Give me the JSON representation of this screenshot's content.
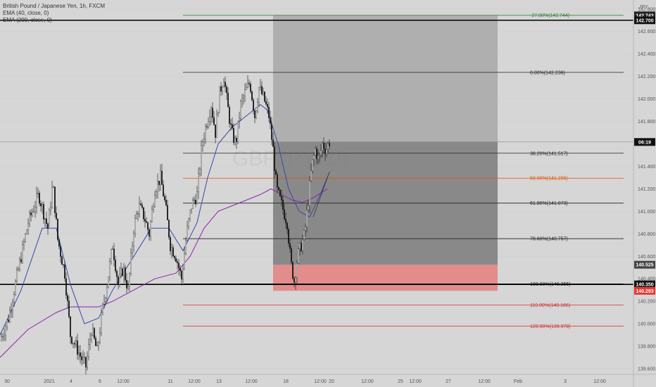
{
  "legend": {
    "title": "British Pound / Japanese Yen, 1h, FXCM",
    "ema40": "EMA (40, close, 0)",
    "ema200": "EMA (200, close, 0)"
  },
  "watermark": "GBPJPY, 1h",
  "chart_data": {
    "type": "candlestick",
    "currency": "JPY",
    "ylim": [
      139.55,
      142.88
    ],
    "y_ticks": [
      "142.800",
      "142.600",
      "142.400",
      "142.200",
      "142.000",
      "141.800",
      "141.600",
      "141.400",
      "141.200",
      "141.000",
      "140.800",
      "140.600",
      "140.400",
      "140.200",
      "140.000",
      "139.800",
      "139.600"
    ],
    "x_ticks": [
      "30",
      "2021",
      "4",
      "6",
      "12:00",
      "11",
      "12:00",
      "13",
      "12:00",
      "18",
      "12:00",
      "20",
      "12:00",
      "25",
      "12:00",
      "27",
      "12:00",
      "Feb",
      "3",
      "12:00"
    ],
    "horizontal_lines": [
      142.7,
      140.35
    ],
    "fibonacci": [
      {
        "label": "-27.00%(142.744)",
        "price": 142.744,
        "color": "#2e7d32"
      },
      {
        "label": "0.00%(142.236)",
        "price": 142.236,
        "color": "#222222"
      },
      {
        "label": "38.20%(141.517)",
        "price": 141.517,
        "color": "#222222"
      },
      {
        "label": "50.00%(141.295)",
        "price": 141.295,
        "color": "#e65100"
      },
      {
        "label": "61.80%(141.073)",
        "price": 141.073,
        "color": "#222222"
      },
      {
        "label": "78.60%(140.757)",
        "price": 140.757,
        "color": "#222222"
      },
      {
        "label": "100.00%(140.355)",
        "price": 140.355,
        "color": "#222222"
      },
      {
        "label": "110.00%(140.166)",
        "price": 140.166,
        "color": "#d32f2f"
      },
      {
        "label": "120.00%(139.978)",
        "price": 139.978,
        "color": "#d32f2f"
      }
    ],
    "position": {
      "target": 142.743,
      "entry": 140.525,
      "stop": 140.293
    },
    "price_tags": [
      {
        "label": "142.743",
        "price": 142.743,
        "bg": "#222222",
        "fg": "#ffffff"
      },
      {
        "label": "142.700",
        "price": 142.7,
        "bg": "#111111",
        "fg": "#ffffff"
      },
      {
        "label": "06:19",
        "price": 141.617,
        "bg": "#111111",
        "fg": "#ffffff"
      },
      {
        "label": "140.525",
        "price": 140.525,
        "bg": "#444444",
        "fg": "#ffffff"
      },
      {
        "label": "140.350",
        "price": 140.35,
        "bg": "#111111",
        "fg": "#ffffff"
      },
      {
        "label": "140.293",
        "price": 140.293,
        "bg": "#e53935",
        "fg": "#ffffff"
      }
    ],
    "price_path": [
      [
        0,
        139.85
      ],
      [
        12,
        140.05
      ],
      [
        25,
        140.45
      ],
      [
        40,
        140.9
      ],
      [
        55,
        141.15
      ],
      [
        68,
        140.85
      ],
      [
        75,
        141.25
      ],
      [
        82,
        140.75
      ],
      [
        92,
        140.45
      ],
      [
        100,
        139.9
      ],
      [
        108,
        139.8
      ],
      [
        115,
        139.7
      ],
      [
        122,
        139.62
      ],
      [
        130,
        139.95
      ],
      [
        138,
        139.75
      ],
      [
        145,
        140.1
      ],
      [
        152,
        140.35
      ],
      [
        160,
        140.7
      ],
      [
        168,
        140.35
      ],
      [
        175,
        140.5
      ],
      [
        182,
        140.3
      ],
      [
        190,
        140.85
      ],
      [
        197,
        141.05
      ],
      [
        205,
        140.95
      ],
      [
        212,
        140.8
      ],
      [
        220,
        141.2
      ],
      [
        228,
        141.3
      ],
      [
        235,
        141.05
      ],
      [
        242,
        140.7
      ],
      [
        250,
        140.6
      ],
      [
        258,
        140.4
      ],
      [
        265,
        140.8
      ],
      [
        272,
        141.05
      ],
      [
        280,
        141.15
      ],
      [
        287,
        141.6
      ],
      [
        294,
        141.8
      ],
      [
        300,
        141.95
      ],
      [
        306,
        141.7
      ],
      [
        312,
        142.05
      ],
      [
        318,
        142.2
      ],
      [
        323,
        141.95
      ],
      [
        329,
        141.7
      ],
      [
        335,
        141.6
      ],
      [
        342,
        141.95
      ],
      [
        348,
        142.05
      ],
      [
        355,
        142.15
      ],
      [
        362,
        141.85
      ],
      [
        368,
        142.1
      ],
      [
        375,
        142.0
      ],
      [
        382,
        141.85
      ],
      [
        388,
        141.55
      ],
      [
        393,
        141.2
      ],
      [
        398,
        141.1
      ],
      [
        403,
        141.0
      ],
      [
        408,
        140.9
      ],
      [
        413,
        140.55
      ],
      [
        418,
        140.38
      ],
      [
        423,
        140.6
      ],
      [
        428,
        140.7
      ],
      [
        433,
        140.8
      ],
      [
        438,
        141.1
      ],
      [
        443,
        141.4
      ],
      [
        448,
        141.55
      ],
      [
        453,
        141.45
      ],
      [
        458,
        141.6
      ],
      [
        463,
        141.55
      ],
      [
        468,
        141.62
      ]
    ],
    "ema40": [
      [
        0,
        139.9
      ],
      [
        30,
        140.3
      ],
      [
        60,
        140.85
      ],
      [
        80,
        140.85
      ],
      [
        100,
        140.35
      ],
      [
        120,
        140.0
      ],
      [
        140,
        140.05
      ],
      [
        160,
        140.3
      ],
      [
        190,
        140.6
      ],
      [
        215,
        140.85
      ],
      [
        240,
        140.85
      ],
      [
        260,
        140.65
      ],
      [
        280,
        140.9
      ],
      [
        295,
        141.3
      ],
      [
        310,
        141.6
      ],
      [
        330,
        141.75
      ],
      [
        350,
        141.85
      ],
      [
        370,
        141.95
      ],
      [
        380,
        141.9
      ],
      [
        395,
        141.6
      ],
      [
        410,
        141.2
      ],
      [
        425,
        141.0
      ],
      [
        440,
        140.95
      ],
      [
        455,
        141.15
      ],
      [
        465,
        141.3
      ]
    ],
    "ema200": [
      [
        0,
        139.7
      ],
      [
        40,
        139.95
      ],
      [
        80,
        140.1
      ],
      [
        100,
        140.15
      ],
      [
        120,
        140.15
      ],
      [
        140,
        140.15
      ],
      [
        160,
        140.2
      ],
      [
        190,
        140.3
      ],
      [
        220,
        140.4
      ],
      [
        250,
        140.45
      ],
      [
        270,
        140.6
      ],
      [
        290,
        140.85
      ],
      [
        310,
        141.0
      ],
      [
        330,
        141.05
      ],
      [
        350,
        141.1
      ],
      [
        370,
        141.15
      ],
      [
        385,
        141.2
      ],
      [
        400,
        141.15
      ],
      [
        415,
        141.1
      ],
      [
        430,
        141.08
      ],
      [
        445,
        141.12
      ],
      [
        465,
        141.2
      ]
    ]
  }
}
